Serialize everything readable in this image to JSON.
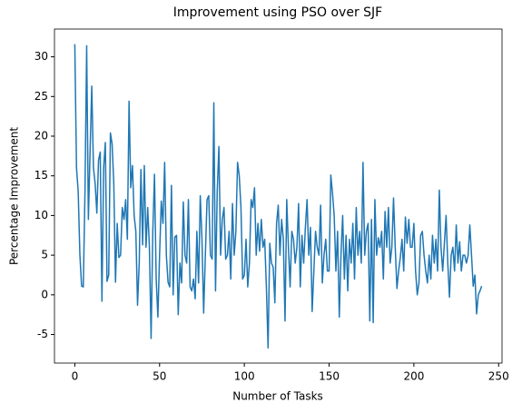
{
  "chart_data": {
    "type": "line",
    "title": "Improvement using PSO over SJF",
    "xlabel": "Number of Tasks",
    "ylabel": "Percentage Improvement",
    "x": [
      0,
      1,
      2,
      3,
      4,
      5,
      6,
      7,
      8,
      9,
      10,
      11,
      12,
      13,
      14,
      15,
      16,
      17,
      18,
      19,
      20,
      21,
      22,
      23,
      24,
      25,
      26,
      27,
      28,
      29,
      30,
      31,
      32,
      33,
      34,
      35,
      36,
      37,
      38,
      39,
      40,
      41,
      42,
      43,
      44,
      45,
      46,
      47,
      48,
      49,
      50,
      51,
      52,
      53,
      54,
      55,
      56,
      57,
      58,
      59,
      60,
      61,
      62,
      63,
      64,
      65,
      66,
      67,
      68,
      69,
      70,
      71,
      72,
      73,
      74,
      75,
      76,
      77,
      78,
      79,
      80,
      81,
      82,
      83,
      84,
      85,
      86,
      87,
      88,
      89,
      90,
      91,
      92,
      93,
      94,
      95,
      96,
      97,
      98,
      99,
      100,
      101,
      102,
      103,
      104,
      105,
      106,
      107,
      108,
      109,
      110,
      111,
      112,
      113,
      114,
      115,
      116,
      117,
      118,
      119,
      120,
      121,
      122,
      123,
      124,
      125,
      126,
      127,
      128,
      129,
      130,
      131,
      132,
      133,
      134,
      135,
      136,
      137,
      138,
      139,
      140,
      141,
      142,
      143,
      144,
      145,
      146,
      147,
      148,
      149,
      150,
      151,
      152,
      153,
      154,
      155,
      156,
      157,
      158,
      159,
      160,
      161,
      162,
      163,
      164,
      165,
      166,
      167,
      168,
      169,
      170,
      171,
      172,
      173,
      174,
      175,
      176,
      177,
      178,
      179,
      180,
      181,
      182,
      183,
      184,
      185,
      186,
      187,
      188,
      189,
      190,
      191,
      192,
      193,
      194,
      195,
      196,
      197,
      198,
      199,
      200,
      201,
      202,
      203,
      204,
      205,
      206,
      207,
      208,
      209,
      210,
      211,
      212,
      213,
      214,
      215,
      216,
      217,
      218,
      219,
      220,
      221,
      222,
      223,
      224,
      225,
      226,
      227,
      228,
      229,
      230,
      231,
      232,
      233,
      234,
      235,
      236,
      237,
      238,
      239,
      240
    ],
    "series": [
      {
        "name": "improvement",
        "color": "#1f77b4",
        "values": [
          31.6,
          16,
          13,
          5,
          1.1,
          1,
          13,
          31.4,
          9.5,
          18,
          26.3,
          16,
          14,
          10.3,
          17,
          18,
          -0.8,
          16,
          19.2,
          1.7,
          2.5,
          20.4,
          19,
          14,
          1.6,
          9,
          4.7,
          5,
          11,
          9.5,
          12,
          7,
          24.4,
          13.5,
          16.3,
          10,
          8,
          -1.3,
          4,
          15.8,
          6.3,
          16.3,
          6,
          11,
          6,
          -5.5,
          8,
          15.2,
          2,
          -2.8,
          5,
          11.8,
          9,
          16.7,
          5,
          1.6,
          1,
          13.8,
          0,
          7.3,
          7.5,
          -2.5,
          4,
          1.5,
          11.7,
          5,
          4,
          12,
          1,
          0.5,
          2,
          -0.5,
          8,
          1.5,
          12.5,
          7,
          -2.3,
          5,
          12,
          12.5,
          5,
          4.5,
          24.2,
          0.5,
          13,
          18.7,
          5,
          9.5,
          11,
          4.5,
          5,
          8,
          2,
          11.5,
          5,
          8,
          16.7,
          15,
          11,
          2,
          2.5,
          7,
          1,
          4,
          12,
          11,
          13.5,
          5,
          9,
          5.5,
          9.5,
          6,
          7,
          1,
          -6.7,
          6.5,
          4,
          3.5,
          -1,
          9,
          11.3,
          5,
          9.5,
          7,
          -3.3,
          12,
          6,
          1,
          8,
          7,
          4,
          6,
          11.5,
          1,
          7.5,
          4,
          8.5,
          12,
          5,
          8.5,
          -2.1,
          3,
          8,
          6,
          5,
          11.3,
          1.5,
          5,
          7,
          3,
          3,
          15.1,
          12.8,
          10,
          3,
          8,
          -2.8,
          5,
          10,
          2,
          7.5,
          0.5,
          7,
          4,
          9,
          2,
          11,
          5,
          8,
          4,
          16.7,
          5,
          8,
          9,
          -3.3,
          9.5,
          -3.5,
          12,
          5,
          7.2,
          6,
          8,
          2,
          10.5,
          6,
          11,
          4,
          6,
          12.2,
          6,
          0.8,
          3,
          4.7,
          7,
          3,
          9.8,
          6.5,
          9.5,
          6,
          6,
          9,
          3,
          0,
          1.5,
          7.5,
          8,
          5,
          3,
          1.5,
          5,
          2,
          7.5,
          4,
          7,
          3,
          13.2,
          6,
          3,
          6.5,
          10,
          4,
          -0.3,
          5,
          6,
          3,
          8.8,
          4,
          6.7,
          3,
          5,
          5,
          4,
          5,
          8.8,
          5,
          1.1,
          2.5,
          -2.4,
          0,
          0.5,
          1.1
        ]
      }
    ],
    "xlim": [
      -12,
      252
    ],
    "ylim": [
      -8.6,
      33.5
    ],
    "xticks": [
      0,
      50,
      100,
      150,
      200,
      250
    ],
    "yticks": [
      -5,
      0,
      5,
      10,
      15,
      20,
      25,
      30
    ]
  }
}
